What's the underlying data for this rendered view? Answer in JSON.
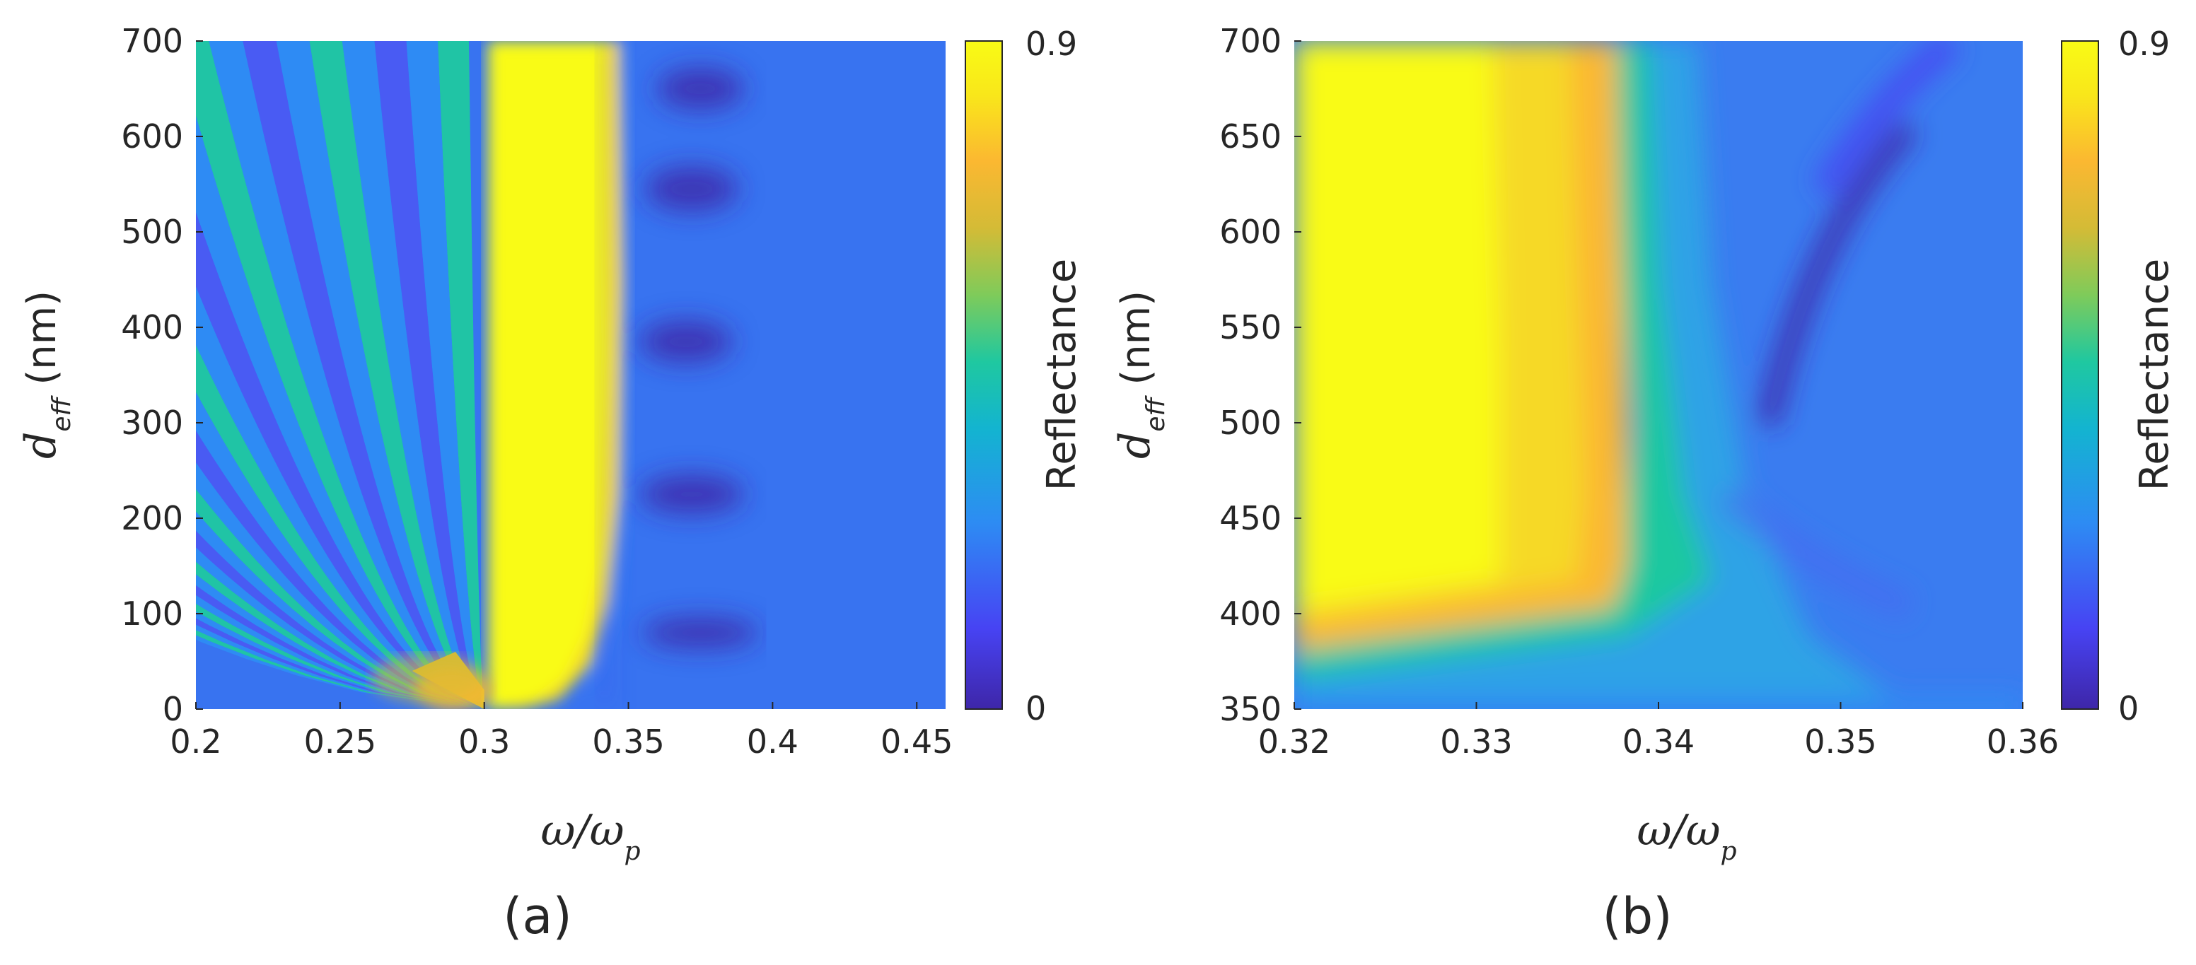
{
  "colors": {
    "cmap": [
      "#3e26a8",
      "#4743f3",
      "#2d8cf3",
      "#13b4d0",
      "#1fc8a0",
      "#7fcb5a",
      "#d4bb36",
      "#fbb831",
      "#f9e71a",
      "#f9fb15"
    ],
    "axis": "#262626"
  },
  "chart_data": [
    {
      "type": "heatmap",
      "panel_label": "(a)",
      "xlabel": {
        "main": "ω/ω",
        "sub": "p"
      },
      "ylabel": {
        "main": "d",
        "sub": "eff",
        "unit": " (nm)"
      },
      "xlim": [
        0.2,
        0.46
      ],
      "ylim": [
        0,
        700
      ],
      "xticks": [
        0.2,
        0.25,
        0.3,
        0.35,
        0.4,
        0.45
      ],
      "xtick_labels": [
        "0.2",
        "0.25",
        "0.3",
        "0.35",
        "0.4",
        "0.45"
      ],
      "yticks": [
        0,
        100,
        200,
        300,
        400,
        500,
        600,
        700
      ],
      "ytick_labels": [
        "0",
        "100",
        "200",
        "300",
        "400",
        "500",
        "600",
        "700"
      ],
      "colorbar": {
        "label": "Reflectance",
        "range": [
          0,
          0.9
        ],
        "tick_labels": [
          "0",
          "0.9"
        ]
      },
      "description_of_field": "Below omega/omega_p = 0.3: Fabry-Perot fringes fanning out from (0.3, 0); high reflectance band ~0.9 for 0.3 to 0.34; narrow dip near 0.34; low reflectance minima near 0.375 at 80, 220, 380, 550 nm"
    },
    {
      "type": "heatmap",
      "panel_label": "(b)",
      "xlabel": {
        "main": "ω/ω",
        "sub": "p"
      },
      "ylabel": {
        "main": "d",
        "sub": "eff",
        "unit": " (nm)"
      },
      "xlim": [
        0.32,
        0.36
      ],
      "ylim": [
        350,
        700
      ],
      "xticks": [
        0.32,
        0.33,
        0.34,
        0.35,
        0.36
      ],
      "xtick_labels": [
        "0.32",
        "0.33",
        "0.34",
        "0.35",
        "0.36"
      ],
      "yticks": [
        350,
        400,
        450,
        500,
        550,
        600,
        650,
        700
      ],
      "ytick_labels": [
        "350",
        "400",
        "450",
        "500",
        "550",
        "600",
        "650",
        "700"
      ],
      "colorbar": {
        "label": "Reflectance",
        "range": [
          0,
          0.9
        ],
        "tick_labels": [
          "0",
          "0.9"
        ]
      },
      "description_of_field": "High reflectance (yellow) for omega/omega_p below ~0.338 and d above ~370 nm; transition near 0.338-0.343; curved dark minima from (0.345, 500) to (0.355, 700)"
    }
  ]
}
